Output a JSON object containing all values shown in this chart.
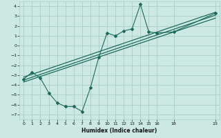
{
  "xlabel": "Humidex (Indice chaleur)",
  "xlim": [
    -0.5,
    23.5
  ],
  "ylim": [
    -7.5,
    4.5
  ],
  "xticks": [
    0,
    1,
    2,
    3,
    4,
    5,
    6,
    7,
    8,
    9,
    10,
    11,
    12,
    13,
    14,
    15,
    16,
    18,
    23
  ],
  "yticks": [
    -7,
    -6,
    -5,
    -4,
    -3,
    -2,
    -1,
    0,
    1,
    2,
    3,
    4
  ],
  "bg_color": "#cce8e2",
  "grid_color": "#a8ccc6",
  "line_color": "#1a6b5a",
  "zigzag_x": [
    0,
    1,
    2,
    3,
    4,
    5,
    6,
    7,
    8,
    9,
    10,
    11,
    12,
    13,
    14,
    15,
    16,
    18,
    23
  ],
  "zigzag_y": [
    -3.4,
    -2.7,
    -3.3,
    -4.8,
    -5.8,
    -6.2,
    -6.2,
    -6.7,
    -4.3,
    -1.2,
    1.3,
    1.0,
    1.5,
    1.7,
    4.2,
    1.4,
    1.3,
    1.4,
    3.3
  ],
  "trend1_x": [
    0,
    23
  ],
  "trend1_y": [
    -3.2,
    3.4
  ],
  "trend2_x": [
    0,
    23
  ],
  "trend2_y": [
    -3.5,
    3.1
  ],
  "trend3_x": [
    0,
    23
  ],
  "trend3_y": [
    -3.7,
    2.8
  ]
}
